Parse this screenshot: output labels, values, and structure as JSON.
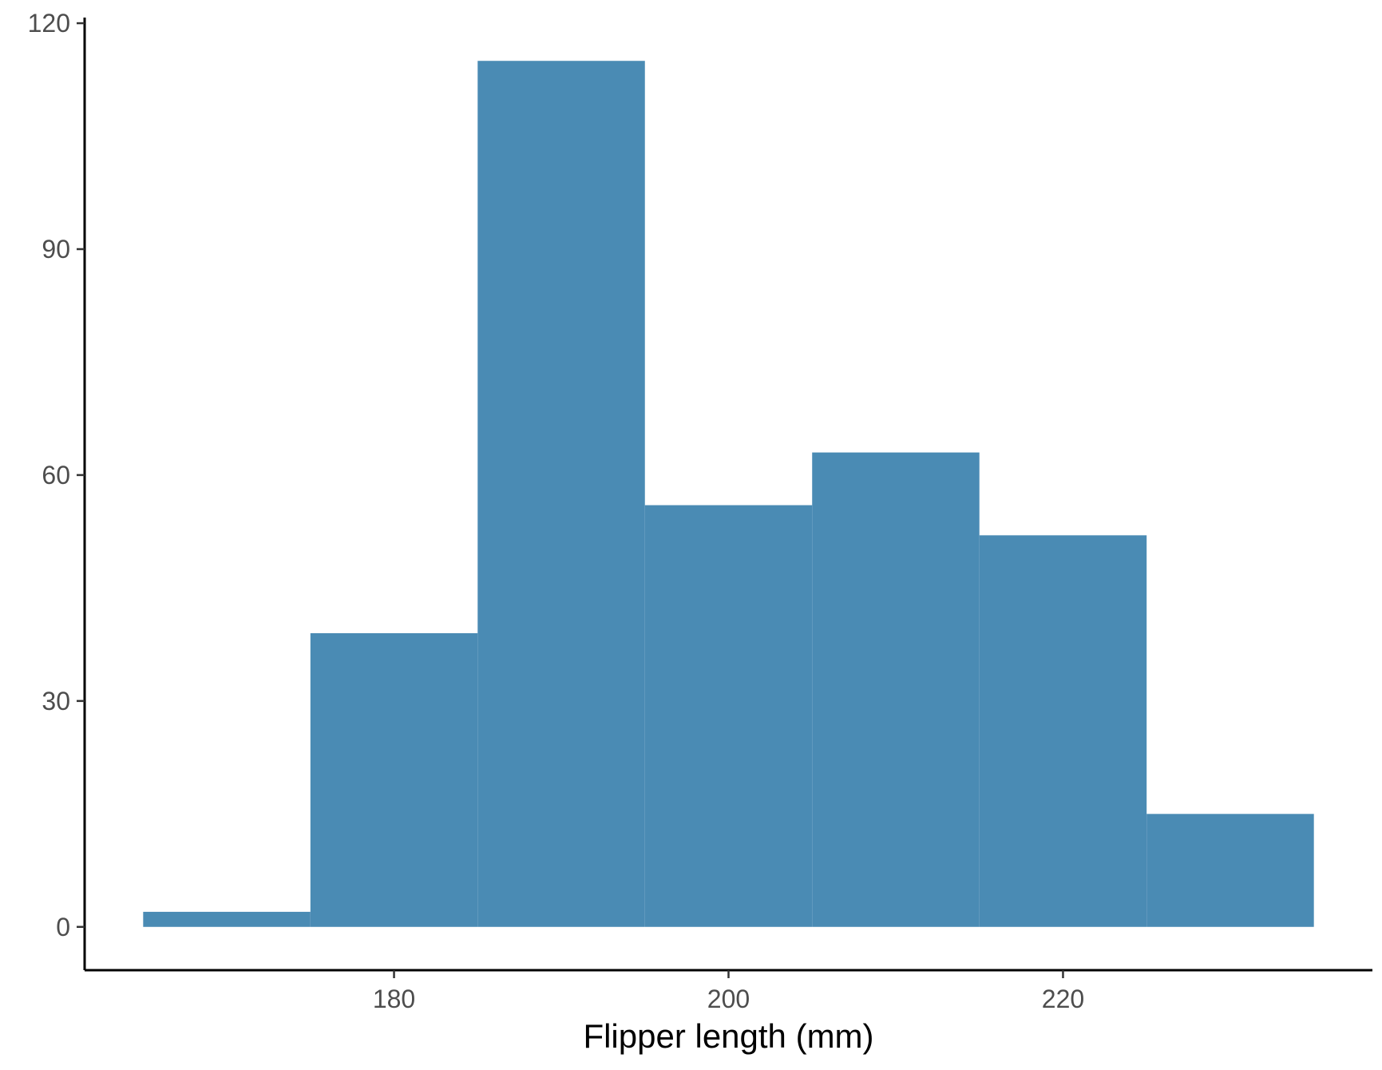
{
  "chart_data": {
    "type": "bar",
    "title": "",
    "xlabel": "Flipper length (mm)",
    "ylabel": "",
    "bins": [
      {
        "x0": 165,
        "x1": 175,
        "count": 2
      },
      {
        "x0": 175,
        "x1": 185,
        "count": 39
      },
      {
        "x0": 185,
        "x1": 195,
        "count": 115
      },
      {
        "x0": 195,
        "x1": 205,
        "count": 56
      },
      {
        "x0": 205,
        "x1": 215,
        "count": 63
      },
      {
        "x0": 215,
        "x1": 225,
        "count": 52
      },
      {
        "x0": 225,
        "x1": 235,
        "count": 15
      }
    ],
    "xlim": [
      161.5,
      238.5
    ],
    "ylim": [
      -5.75,
      120.75
    ],
    "xticks": [
      180,
      200,
      220
    ],
    "yticks": [
      0,
      30,
      60,
      90,
      120
    ],
    "grid": false,
    "legend": "none",
    "bar_color": "#4A8BB4"
  }
}
